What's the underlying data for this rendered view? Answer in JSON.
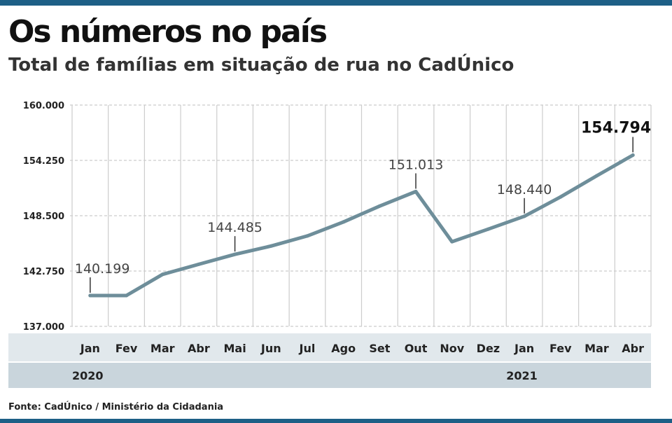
{
  "title": "Os números no país",
  "subtitle": "Total de famílias em situação de rua no CadÚnico",
  "source": "Fonte: CadÚnico / Ministério da Cidadania",
  "colors": {
    "line": "#6e8e9a",
    "band_dark": "#c9d5dc",
    "band_light": "#e1e8ec",
    "bar": "#1d5f86"
  },
  "chart_data": {
    "type": "line",
    "categories": [
      "Jan",
      "Fev",
      "Mar",
      "Abr",
      "Mai",
      "Jun",
      "Jul",
      "Ago",
      "Set",
      "Out",
      "Nov",
      "Dez",
      "Jan",
      "Fev",
      "Mar",
      "Abr"
    ],
    "years": [
      {
        "label": "2020",
        "start_index": 0
      },
      {
        "label": "2021",
        "start_index": 12
      }
    ],
    "values": [
      140199,
      140199,
      142400,
      143450,
      144485,
      145350,
      146400,
      147850,
      149500,
      151013,
      145800,
      147100,
      148440,
      150450,
      152650,
      154794
    ],
    "labels": [
      {
        "index": 0,
        "text": "140.199"
      },
      {
        "index": 4,
        "text": "144.485"
      },
      {
        "index": 9,
        "text": "151.013"
      },
      {
        "index": 12,
        "text": "148.440"
      },
      {
        "index": 15,
        "text": "154.794",
        "emphasis": true
      }
    ],
    "yticks": [
      "160.000",
      "154.250",
      "148.500",
      "142.750",
      "137.000"
    ],
    "ytick_values": [
      160000,
      154250,
      148500,
      142750,
      137000
    ],
    "ylim": [
      137000,
      160000
    ],
    "grid": true
  }
}
